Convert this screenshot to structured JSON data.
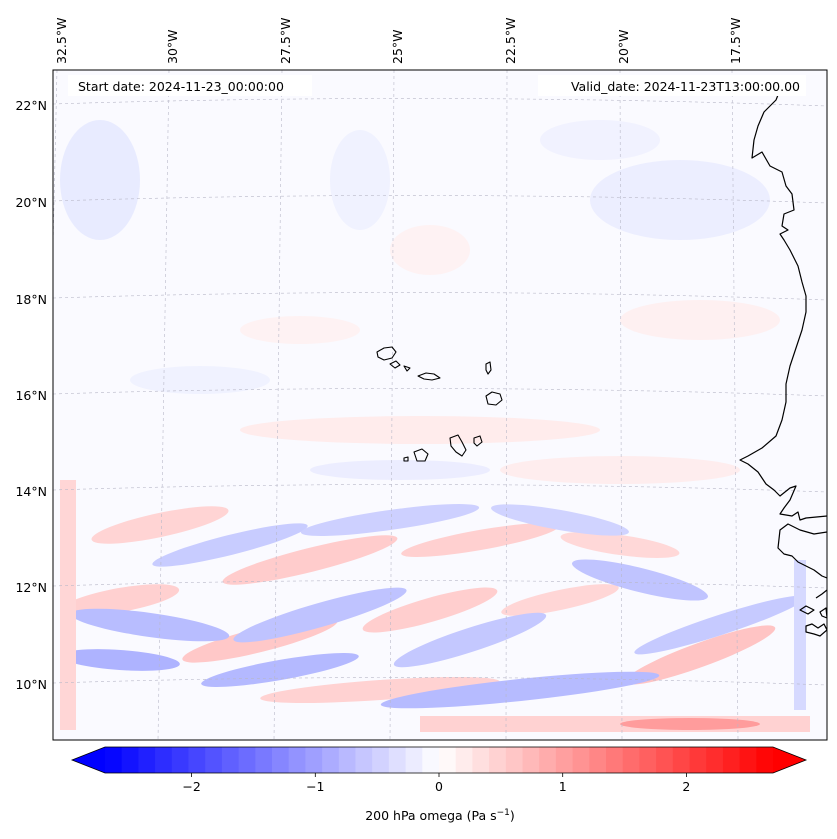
{
  "map": {
    "projection": "Lambert conformal",
    "lon_ticks": [
      "32.5°W",
      "30°W",
      "27.5°W",
      "25°W",
      "22.5°W",
      "20°W",
      "17.5°W"
    ],
    "lat_ticks": [
      "22°N",
      "20°N",
      "18°N",
      "16°N",
      "14°N",
      "12°N",
      "10°N"
    ],
    "gridlines": true,
    "coastlines": true,
    "start_date_label": "Start date: 2024-11-23_00:00:00",
    "valid_date_label": "Valid_date: 2024-11-23T13:00:00.00"
  },
  "colorbar": {
    "label": "200 hPa omega (Pa s",
    "label_sup": "−1",
    "label_close": ")",
    "ticks": [
      "−2",
      "−1",
      "0",
      "1",
      "2"
    ],
    "tick_values": [
      -2,
      -1,
      0,
      1,
      2
    ],
    "range": [
      -2.7,
      2.7
    ],
    "colormap": "bwr",
    "extend": "both",
    "color_min": "#0000ff",
    "color_mid": "#ffffff",
    "color_max": "#ff0000"
  }
}
